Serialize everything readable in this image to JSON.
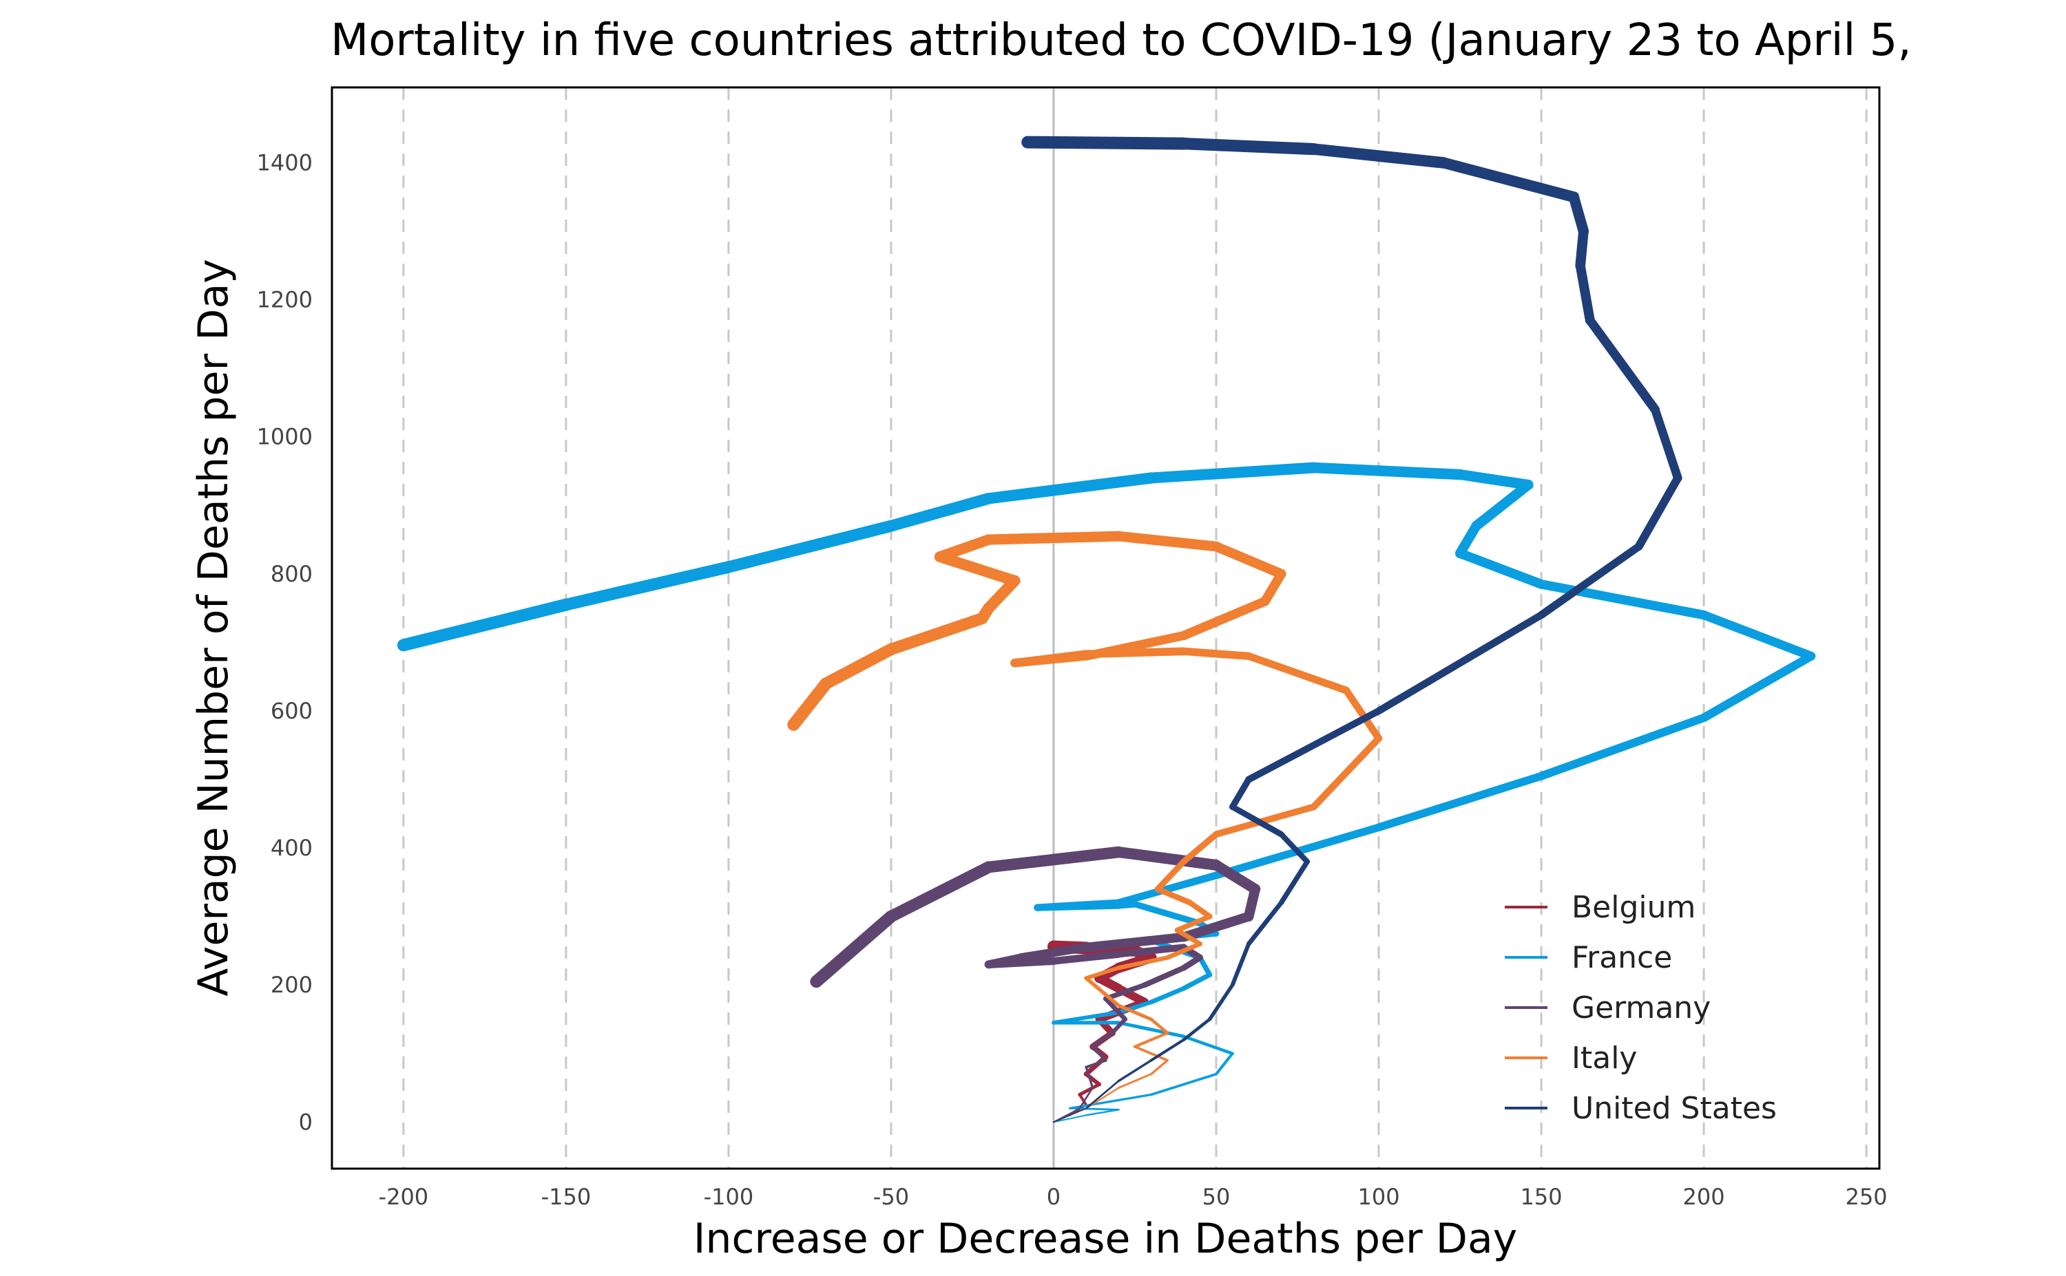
{
  "chart_data": {
    "type": "line",
    "title": "Mortality in five countries attributed to COVID-19 (January 23 to April 5,",
    "xlabel": "Increase or Decrease in Deaths per Day",
    "ylabel": "Average Number of Deaths per Day",
    "xlim": [
      -222,
      254
    ],
    "ylim": [
      -68,
      1510
    ],
    "x_ticks": [
      -200,
      -150,
      -100,
      -50,
      0,
      50,
      100,
      150,
      200,
      250
    ],
    "x_tick_labels": [
      "-200",
      "-150",
      "-100",
      "-50",
      "0",
      "50",
      "100",
      "150",
      "200",
      "250"
    ],
    "y_ticks": [
      0,
      200,
      400,
      600,
      800,
      1000,
      1200,
      1400
    ],
    "y_tick_labels": [
      "0",
      "200",
      "400",
      "600",
      "800",
      "1000",
      "1200",
      "1400"
    ],
    "vertical_grid": "dashed",
    "zero_line": true,
    "legend_position": "bottom-right",
    "series": [
      {
        "name": "Belgium",
        "color": "#a0273c",
        "x": [
          0,
          5,
          10,
          8,
          14,
          10,
          16,
          12,
          18,
          14,
          28,
          20,
          14,
          20,
          30,
          25,
          10,
          0
        ],
        "y": [
          0,
          10,
          25,
          40,
          55,
          70,
          95,
          110,
          130,
          150,
          175,
          195,
          210,
          225,
          240,
          250,
          254,
          256
        ]
      },
      {
        "name": "France",
        "color": "#0a9ee0",
        "x": [
          0,
          10,
          20,
          5,
          30,
          50,
          55,
          40,
          20,
          0,
          20,
          30,
          40,
          48,
          45,
          30,
          50,
          45,
          25,
          20,
          -5,
          20,
          50,
          100,
          150,
          200,
          233,
          200,
          150,
          125,
          130,
          146,
          125,
          80,
          30,
          -20,
          -50,
          -100,
          -150,
          -200
        ],
        "y": [
          0,
          10,
          18,
          20,
          40,
          70,
          100,
          125,
          145,
          145,
          160,
          175,
          195,
          215,
          240,
          265,
          275,
          290,
          318,
          316,
          313,
          320,
          360,
          430,
          505,
          590,
          680,
          740,
          785,
          830,
          870,
          930,
          945,
          955,
          940,
          910,
          870,
          810,
          755,
          696
        ]
      },
      {
        "name": "Germany",
        "color": "#5e4570",
        "x": [
          0,
          8,
          12,
          10,
          16,
          12,
          18,
          22,
          16,
          28,
          40,
          45,
          40,
          20,
          0,
          -20,
          -10,
          10,
          40,
          60,
          62,
          50,
          20,
          -20,
          -50,
          -73
        ],
        "y": [
          0,
          20,
          50,
          80,
          90,
          110,
          130,
          150,
          180,
          200,
          225,
          240,
          255,
          245,
          235,
          230,
          240,
          255,
          270,
          300,
          340,
          375,
          394,
          372,
          300,
          205
        ]
      },
      {
        "name": "Italy",
        "color": "#f07f32",
        "x": [
          0,
          10,
          20,
          30,
          35,
          25,
          35,
          30,
          20,
          10,
          20,
          35,
          45,
          38,
          48,
          42,
          32,
          40,
          50,
          80,
          100,
          90,
          60,
          40,
          10,
          -12,
          10,
          40,
          65,
          70,
          50,
          20,
          -20,
          -35,
          -12,
          -20,
          -22,
          -50,
          -70,
          -80
        ],
        "y": [
          0,
          20,
          50,
          70,
          90,
          110,
          130,
          150,
          170,
          210,
          225,
          240,
          260,
          280,
          300,
          320,
          340,
          380,
          420,
          460,
          560,
          630,
          680,
          687,
          683,
          670,
          680,
          710,
          760,
          800,
          840,
          855,
          850,
          825,
          790,
          750,
          735,
          690,
          640,
          580
        ]
      },
      {
        "name": "United States",
        "color": "#1f3e78",
        "x": [
          0,
          10,
          20,
          30,
          40,
          48,
          55,
          60,
          70,
          78,
          70,
          55,
          60,
          100,
          150,
          180,
          192,
          185,
          165,
          162,
          163,
          160,
          120,
          80,
          40,
          -8
        ],
        "y": [
          0,
          20,
          60,
          90,
          120,
          150,
          200,
          260,
          320,
          380,
          420,
          460,
          500,
          600,
          740,
          840,
          940,
          1040,
          1170,
          1250,
          1300,
          1350,
          1400,
          1420,
          1428,
          1430
        ]
      }
    ]
  },
  "legend": {
    "items": [
      {
        "label": "Belgium",
        "color": "#a0273c"
      },
      {
        "label": "France",
        "color": "#0a9ee0"
      },
      {
        "label": "Germany",
        "color": "#5e4570"
      },
      {
        "label": "Italy",
        "color": "#f07f32"
      },
      {
        "label": "United States",
        "color": "#1f3e78"
      }
    ]
  }
}
